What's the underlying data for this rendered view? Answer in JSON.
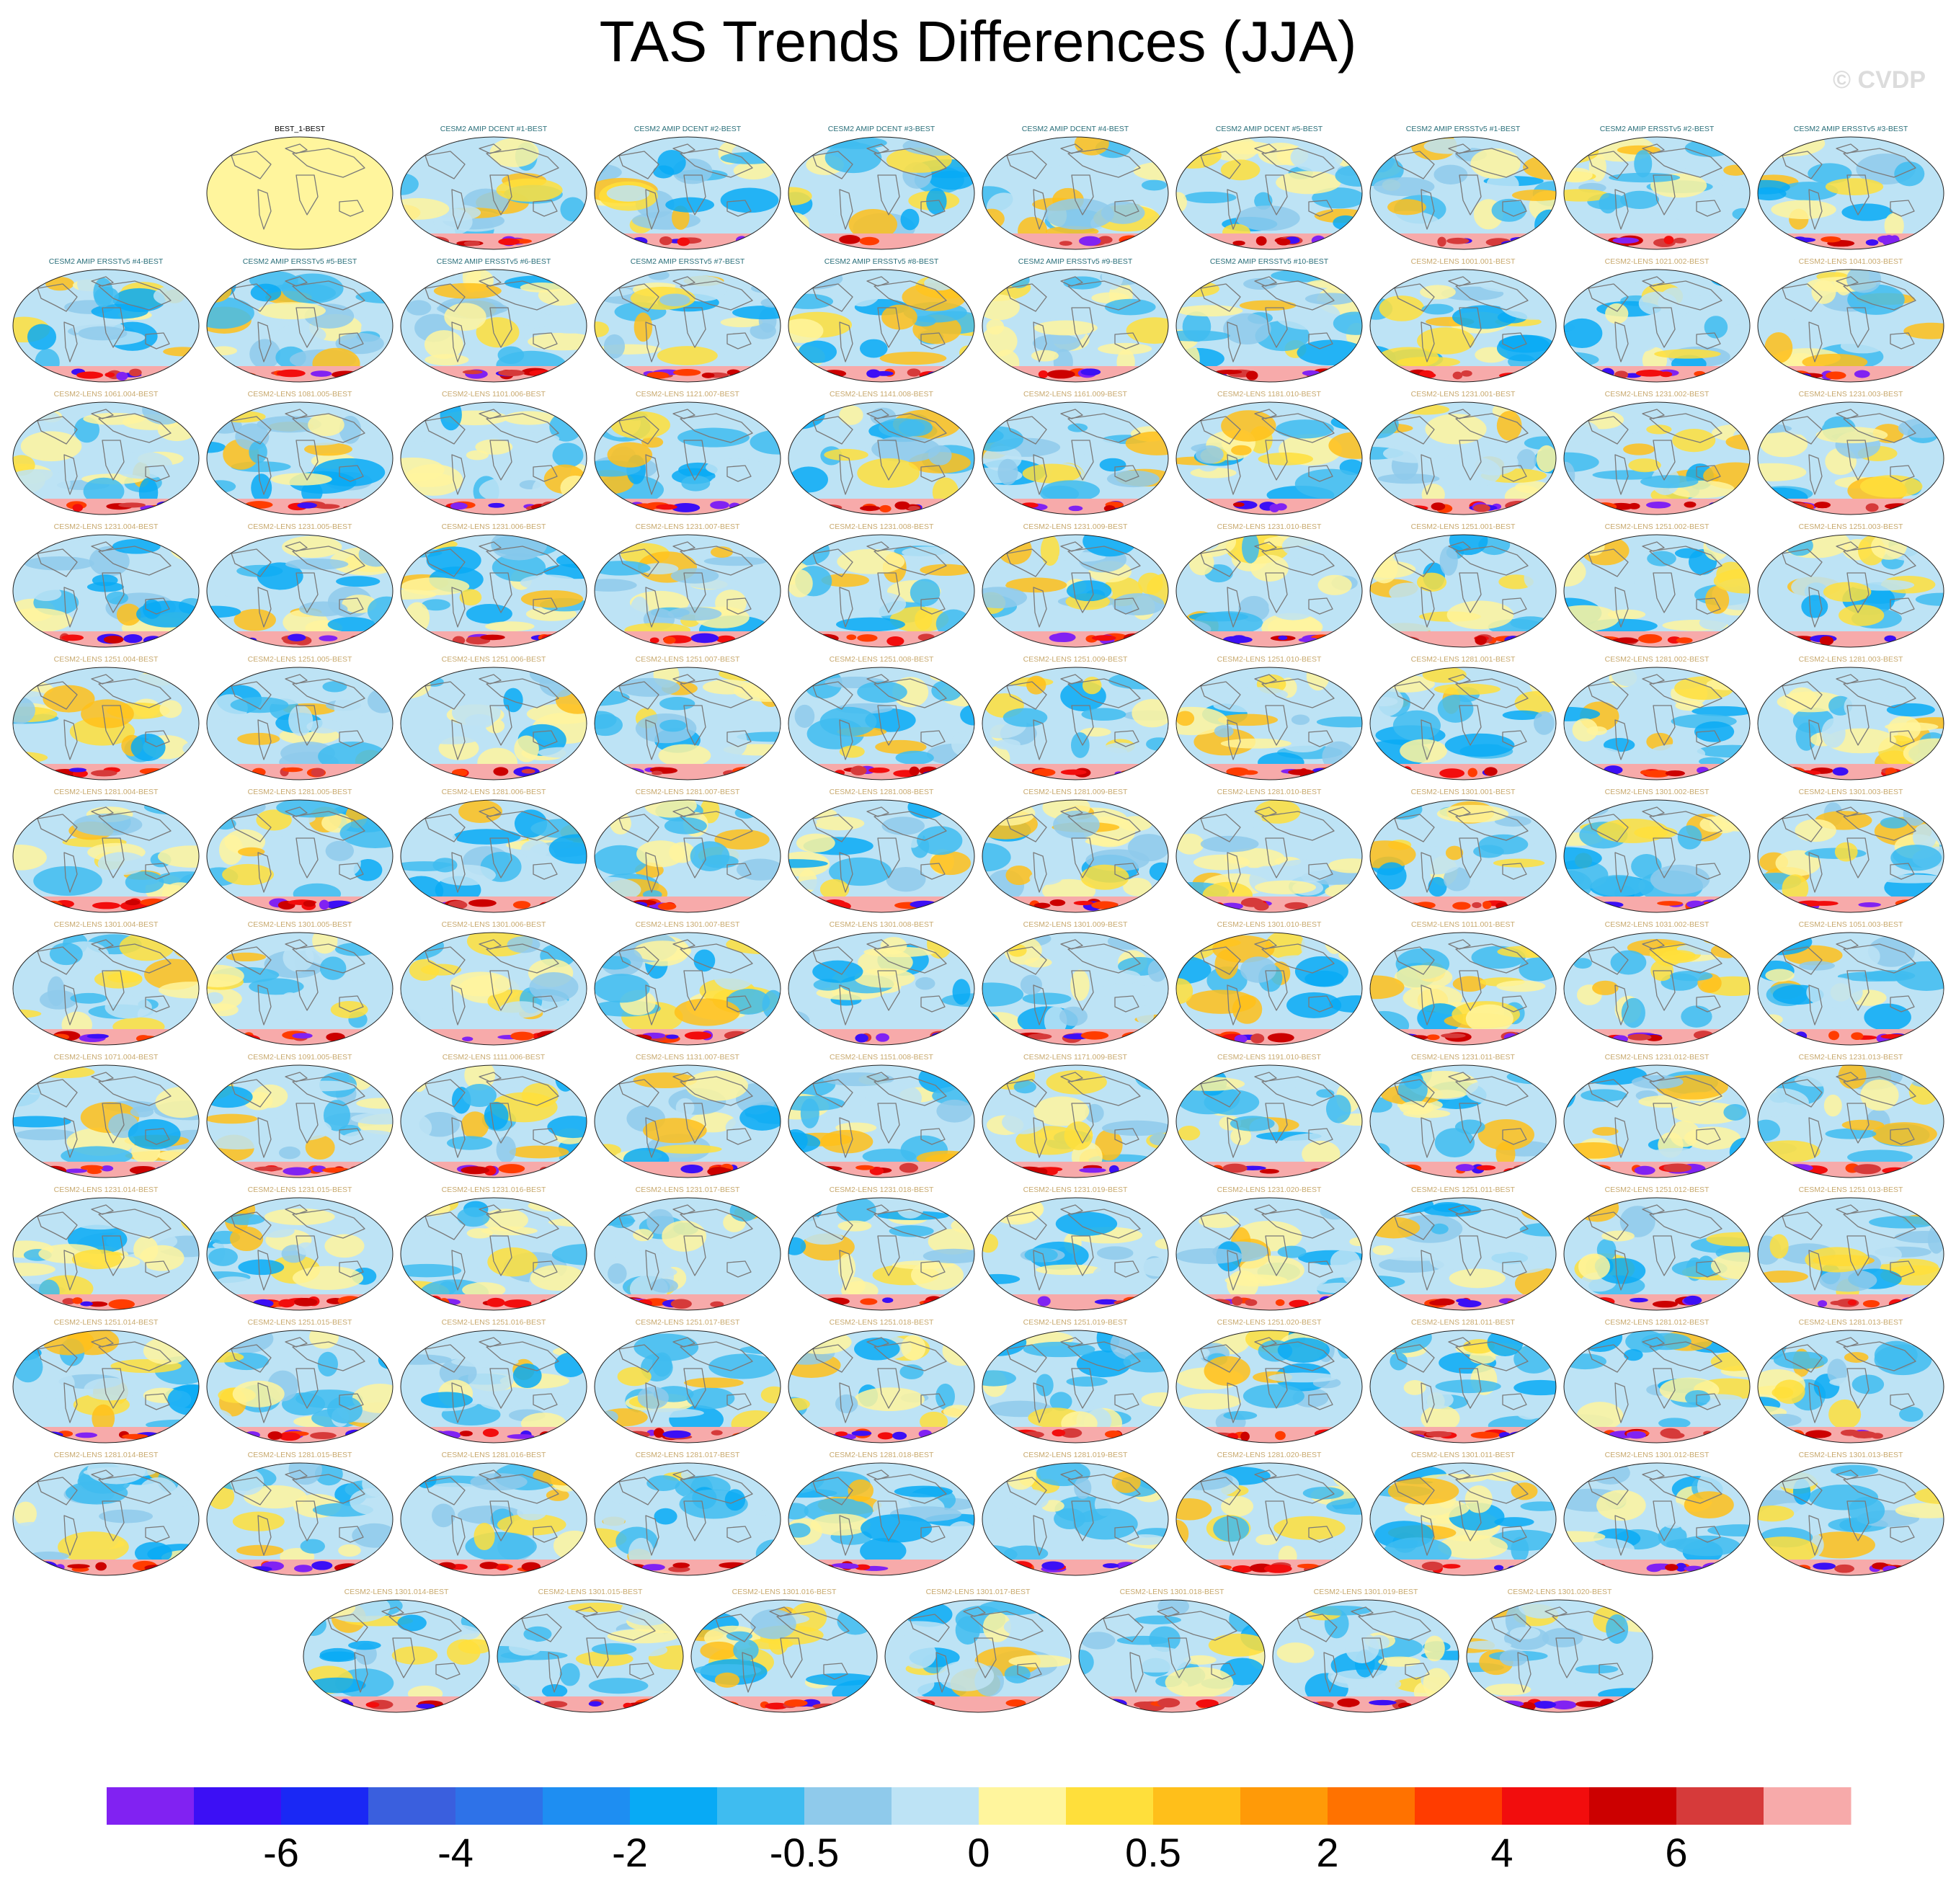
{
  "title": "TAS Trends Differences (JJA)",
  "watermark": "© CVDP",
  "chart_data": {
    "type": "heatmap",
    "description_kind": "multi-panel global map grid",
    "colors": {
      "title_dark": "#000000",
      "title_teal": "#2a6f7a",
      "title_tan": "#c8a96e",
      "reference_fill": "#fff59d",
      "ocean_base": "#bde3f5"
    },
    "panels": [
      {
        "title": "BEST_1-BEST",
        "style": "reference"
      },
      {
        "title": "CESM2 AMIP DCENT #1-BEST",
        "style": "amip"
      },
      {
        "title": "CESM2 AMIP DCENT #2-BEST",
        "style": "amip"
      },
      {
        "title": "CESM2 AMIP DCENT #3-BEST",
        "style": "amip"
      },
      {
        "title": "CESM2 AMIP DCENT #4-BEST",
        "style": "amip"
      },
      {
        "title": "CESM2 AMIP DCENT #5-BEST",
        "style": "amip"
      },
      {
        "title": "CESM2 AMIP ERSSTv5 #1-BEST",
        "style": "amip"
      },
      {
        "title": "CESM2 AMIP ERSSTv5 #2-BEST",
        "style": "amip"
      },
      {
        "title": "CESM2 AMIP ERSSTv5 #3-BEST",
        "style": "amip"
      },
      {
        "title": "CESM2 AMIP ERSSTv5 #4-BEST",
        "style": "amip"
      },
      {
        "title": "CESM2 AMIP ERSSTv5 #5-BEST",
        "style": "amip"
      },
      {
        "title": "CESM2 AMIP ERSSTv5 #6-BEST",
        "style": "amip"
      },
      {
        "title": "CESM2 AMIP ERSSTv5 #7-BEST",
        "style": "amip"
      },
      {
        "title": "CESM2 AMIP ERSSTv5 #8-BEST",
        "style": "amip"
      },
      {
        "title": "CESM2 AMIP ERSSTv5 #9-BEST",
        "style": "amip"
      },
      {
        "title": "CESM2 AMIP ERSSTv5 #10-BEST",
        "style": "amip"
      },
      {
        "title": "CESM2-LENS 1001.001-BEST",
        "style": "lens"
      },
      {
        "title": "CESM2-LENS 1021.002-BEST",
        "style": "lens"
      },
      {
        "title": "CESM2-LENS 1041.003-BEST",
        "style": "lens"
      },
      {
        "title": "CESM2-LENS 1061.004-BEST",
        "style": "lens"
      },
      {
        "title": "CESM2-LENS 1081.005-BEST",
        "style": "lens"
      },
      {
        "title": "CESM2-LENS 1101.006-BEST",
        "style": "lens"
      },
      {
        "title": "CESM2-LENS 1121.007-BEST",
        "style": "lens"
      },
      {
        "title": "CESM2-LENS 1141.008-BEST",
        "style": "lens"
      },
      {
        "title": "CESM2-LENS 1161.009-BEST",
        "style": "lens"
      },
      {
        "title": "CESM2-LENS 1181.010-BEST",
        "style": "lens"
      },
      {
        "title": "CESM2-LENS 1231.001-BEST",
        "style": "lens"
      },
      {
        "title": "CESM2-LENS 1231.002-BEST",
        "style": "lens"
      },
      {
        "title": "CESM2-LENS 1231.003-BEST",
        "style": "lens"
      },
      {
        "title": "CESM2-LENS 1231.004-BEST",
        "style": "lens"
      },
      {
        "title": "CESM2-LENS 1231.005-BEST",
        "style": "lens"
      },
      {
        "title": "CESM2-LENS 1231.006-BEST",
        "style": "lens"
      },
      {
        "title": "CESM2-LENS 1231.007-BEST",
        "style": "lens"
      },
      {
        "title": "CESM2-LENS 1231.008-BEST",
        "style": "lens"
      },
      {
        "title": "CESM2-LENS 1231.009-BEST",
        "style": "lens"
      },
      {
        "title": "CESM2-LENS 1231.010-BEST",
        "style": "lens"
      },
      {
        "title": "CESM2-LENS 1251.001-BEST",
        "style": "lens"
      },
      {
        "title": "CESM2-LENS 1251.002-BEST",
        "style": "lens"
      },
      {
        "title": "CESM2-LENS 1251.003-BEST",
        "style": "lens"
      },
      {
        "title": "CESM2-LENS 1251.004-BEST",
        "style": "lens"
      },
      {
        "title": "CESM2-LENS 1251.005-BEST",
        "style": "lens"
      },
      {
        "title": "CESM2-LENS 1251.006-BEST",
        "style": "lens"
      },
      {
        "title": "CESM2-LENS 1251.007-BEST",
        "style": "lens"
      },
      {
        "title": "CESM2-LENS 1251.008-BEST",
        "style": "lens"
      },
      {
        "title": "CESM2-LENS 1251.009-BEST",
        "style": "lens"
      },
      {
        "title": "CESM2-LENS 1251.010-BEST",
        "style": "lens"
      },
      {
        "title": "CESM2-LENS 1281.001-BEST",
        "style": "lens"
      },
      {
        "title": "CESM2-LENS 1281.002-BEST",
        "style": "lens"
      },
      {
        "title": "CESM2-LENS 1281.003-BEST",
        "style": "lens"
      },
      {
        "title": "CESM2-LENS 1281.004-BEST",
        "style": "lens"
      },
      {
        "title": "CESM2-LENS 1281.005-BEST",
        "style": "lens"
      },
      {
        "title": "CESM2-LENS 1281.006-BEST",
        "style": "lens"
      },
      {
        "title": "CESM2-LENS 1281.007-BEST",
        "style": "lens"
      },
      {
        "title": "CESM2-LENS 1281.008-BEST",
        "style": "lens"
      },
      {
        "title": "CESM2-LENS 1281.009-BEST",
        "style": "lens"
      },
      {
        "title": "CESM2-LENS 1281.010-BEST",
        "style": "lens"
      },
      {
        "title": "CESM2-LENS 1301.001-BEST",
        "style": "lens"
      },
      {
        "title": "CESM2-LENS 1301.002-BEST",
        "style": "lens"
      },
      {
        "title": "CESM2-LENS 1301.003-BEST",
        "style": "lens"
      },
      {
        "title": "CESM2-LENS 1301.004-BEST",
        "style": "lens"
      },
      {
        "title": "CESM2-LENS 1301.005-BEST",
        "style": "lens"
      },
      {
        "title": "CESM2-LENS 1301.006-BEST",
        "style": "lens"
      },
      {
        "title": "CESM2-LENS 1301.007-BEST",
        "style": "lens"
      },
      {
        "title": "CESM2-LENS 1301.008-BEST",
        "style": "lens"
      },
      {
        "title": "CESM2-LENS 1301.009-BEST",
        "style": "lens"
      },
      {
        "title": "CESM2-LENS 1301.010-BEST",
        "style": "lens"
      },
      {
        "title": "CESM2-LENS 1011.001-BEST",
        "style": "lens"
      },
      {
        "title": "CESM2-LENS 1031.002-BEST",
        "style": "lens"
      },
      {
        "title": "CESM2-LENS 1051.003-BEST",
        "style": "lens"
      },
      {
        "title": "CESM2-LENS 1071.004-BEST",
        "style": "lens"
      },
      {
        "title": "CESM2-LENS 1091.005-BEST",
        "style": "lens"
      },
      {
        "title": "CESM2-LENS 1111.006-BEST",
        "style": "lens"
      },
      {
        "title": "CESM2-LENS 1131.007-BEST",
        "style": "lens"
      },
      {
        "title": "CESM2-LENS 1151.008-BEST",
        "style": "lens"
      },
      {
        "title": "CESM2-LENS 1171.009-BEST",
        "style": "lens"
      },
      {
        "title": "CESM2-LENS 1191.010-BEST",
        "style": "lens"
      },
      {
        "title": "CESM2-LENS 1231.011-BEST",
        "style": "lens"
      },
      {
        "title": "CESM2-LENS 1231.012-BEST",
        "style": "lens"
      },
      {
        "title": "CESM2-LENS 1231.013-BEST",
        "style": "lens"
      },
      {
        "title": "CESM2-LENS 1231.014-BEST",
        "style": "lens"
      },
      {
        "title": "CESM2-LENS 1231.015-BEST",
        "style": "lens"
      },
      {
        "title": "CESM2-LENS 1231.016-BEST",
        "style": "lens"
      },
      {
        "title": "CESM2-LENS 1231.017-BEST",
        "style": "lens"
      },
      {
        "title": "CESM2-LENS 1231.018-BEST",
        "style": "lens"
      },
      {
        "title": "CESM2-LENS 1231.019-BEST",
        "style": "lens"
      },
      {
        "title": "CESM2-LENS 1231.020-BEST",
        "style": "lens"
      },
      {
        "title": "CESM2-LENS 1251.011-BEST",
        "style": "lens"
      },
      {
        "title": "CESM2-LENS 1251.012-BEST",
        "style": "lens"
      },
      {
        "title": "CESM2-LENS 1251.013-BEST",
        "style": "lens"
      },
      {
        "title": "CESM2-LENS 1251.014-BEST",
        "style": "lens"
      },
      {
        "title": "CESM2-LENS 1251.015-BEST",
        "style": "lens"
      },
      {
        "title": "CESM2-LENS 1251.016-BEST",
        "style": "lens"
      },
      {
        "title": "CESM2-LENS 1251.017-BEST",
        "style": "lens"
      },
      {
        "title": "CESM2-LENS 1251.018-BEST",
        "style": "lens"
      },
      {
        "title": "CESM2-LENS 1251.019-BEST",
        "style": "lens"
      },
      {
        "title": "CESM2-LENS 1251.020-BEST",
        "style": "lens"
      },
      {
        "title": "CESM2-LENS 1281.011-BEST",
        "style": "lens"
      },
      {
        "title": "CESM2-LENS 1281.012-BEST",
        "style": "lens"
      },
      {
        "title": "CESM2-LENS 1281.013-BEST",
        "style": "lens"
      },
      {
        "title": "CESM2-LENS 1281.014-BEST",
        "style": "lens"
      },
      {
        "title": "CESM2-LENS 1281.015-BEST",
        "style": "lens"
      },
      {
        "title": "CESM2-LENS 1281.016-BEST",
        "style": "lens"
      },
      {
        "title": "CESM2-LENS 1281.017-BEST",
        "style": "lens"
      },
      {
        "title": "CESM2-LENS 1281.018-BEST",
        "style": "lens"
      },
      {
        "title": "CESM2-LENS 1281.019-BEST",
        "style": "lens"
      },
      {
        "title": "CESM2-LENS 1281.020-BEST",
        "style": "lens"
      },
      {
        "title": "CESM2-LENS 1301.011-BEST",
        "style": "lens"
      },
      {
        "title": "CESM2-LENS 1301.012-BEST",
        "style": "lens"
      },
      {
        "title": "CESM2-LENS 1301.013-BEST",
        "style": "lens"
      },
      {
        "title": "CESM2-LENS 1301.014-BEST",
        "style": "lens"
      },
      {
        "title": "CESM2-LENS 1301.015-BEST",
        "style": "lens"
      },
      {
        "title": "CESM2-LENS 1301.016-BEST",
        "style": "lens"
      },
      {
        "title": "CESM2-LENS 1301.017-BEST",
        "style": "lens"
      },
      {
        "title": "CESM2-LENS 1301.018-BEST",
        "style": "lens"
      },
      {
        "title": "CESM2-LENS 1301.019-BEST",
        "style": "lens"
      },
      {
        "title": "CESM2-LENS 1301.020-BEST",
        "style": "lens"
      }
    ],
    "colorbar": {
      "colors": [
        "#8122f2",
        "#3c0ff5",
        "#1a28f5",
        "#3a5fde",
        "#2e72e8",
        "#1e8ef2",
        "#08aaf5",
        "#3fbcf0",
        "#8fcaeb",
        "#bde3f5",
        "#fff59d",
        "#ffdf3b",
        "#ffbf1a",
        "#ff9a08",
        "#ff7200",
        "#ff3c00",
        "#f20d0d",
        "#cc0000",
        "#d63a3a",
        "#f7aaaa"
      ],
      "tick_labels": [
        "-6",
        "-4",
        "-2",
        "-0.5",
        "0",
        "0.5",
        "2",
        "4",
        "6"
      ],
      "tick_boundaries": [
        2,
        4,
        6,
        8,
        10,
        12,
        14,
        16,
        18
      ]
    }
  }
}
